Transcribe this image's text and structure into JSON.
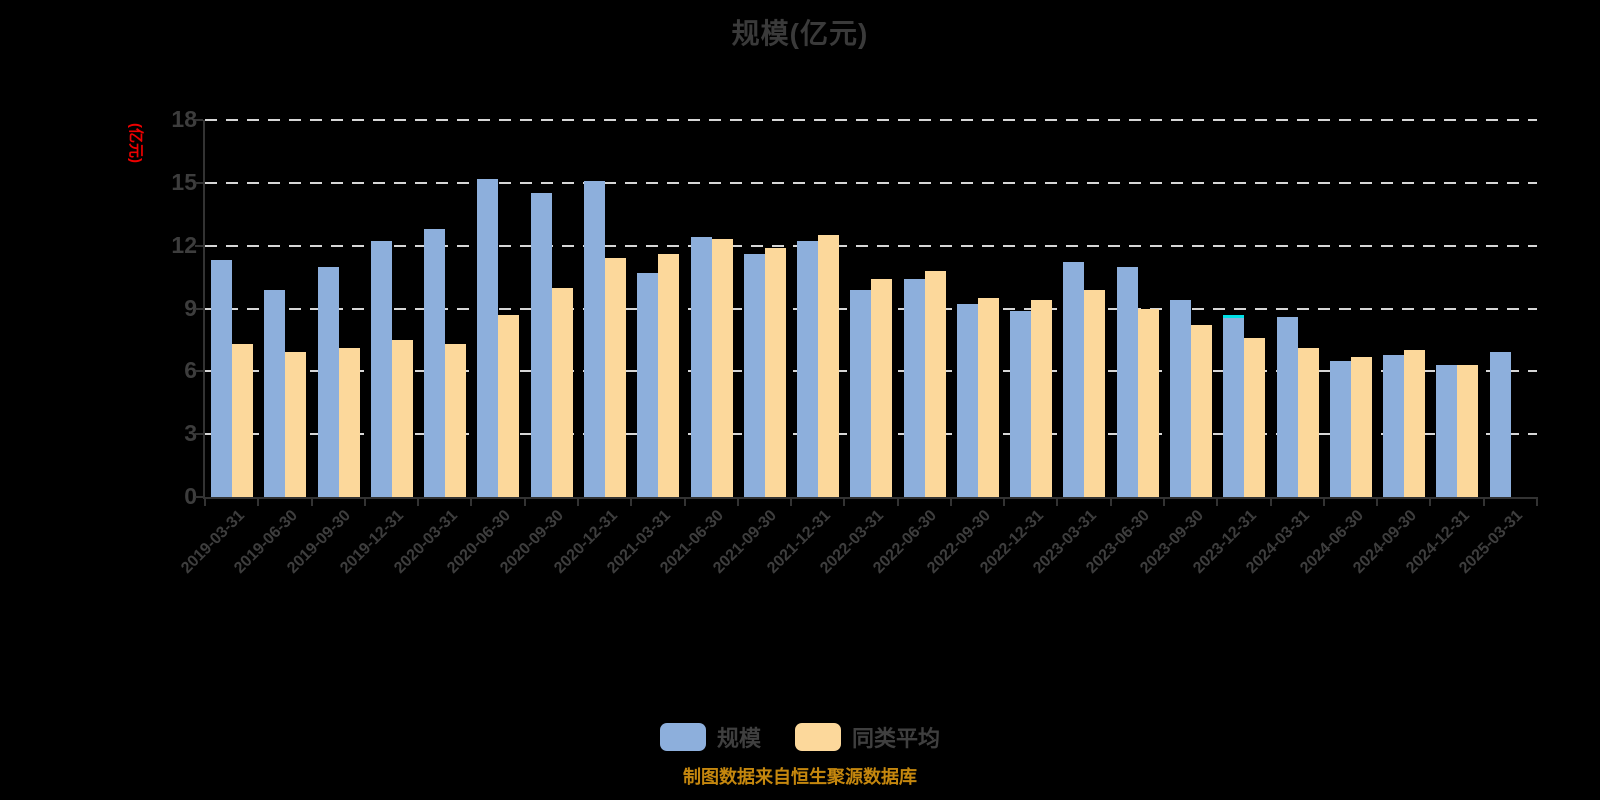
{
  "title": "规模(亿元)",
  "y_axis": {
    "unit_label": "(亿元)",
    "unit_color": "#ee0000",
    "ticks": [
      0,
      3,
      6,
      9,
      12,
      15,
      18
    ]
  },
  "legend": {
    "items": [
      {
        "label": "规模",
        "color": "#8dafdc"
      },
      {
        "label": "同类平均",
        "color": "#fcd89b"
      }
    ]
  },
  "footer": {
    "text": "制图数据来自恒生聚源数据库",
    "color": "#c5870e"
  },
  "chart_data": {
    "type": "bar",
    "title": "规模(亿元)",
    "ylabel": "(亿元)",
    "ylim": [
      0,
      18
    ],
    "grid": true,
    "gridline_color": "#d6d6d6",
    "axis_color": "#333333",
    "legend_position": "bottom",
    "categories": [
      "2019-03-31",
      "2019-06-30",
      "2019-09-30",
      "2019-12-31",
      "2020-03-31",
      "2020-06-30",
      "2020-09-30",
      "2020-12-31",
      "2021-03-31",
      "2021-06-30",
      "2021-09-30",
      "2021-12-31",
      "2022-03-31",
      "2022-06-30",
      "2022-09-30",
      "2022-12-31",
      "2023-03-31",
      "2023-06-30",
      "2023-09-30",
      "2023-12-31",
      "2024-03-31",
      "2024-06-30",
      "2024-09-30",
      "2024-12-31",
      "2025-03-31"
    ],
    "series": [
      {
        "name": "规模",
        "color": "#8dafdc",
        "values": [
          11.3,
          9.9,
          11.0,
          12.2,
          12.8,
          15.2,
          14.5,
          15.1,
          10.7,
          12.4,
          11.6,
          12.2,
          9.9,
          10.4,
          9.2,
          8.9,
          11.2,
          11.0,
          9.4,
          8.7,
          8.6,
          6.5,
          6.8,
          6.3,
          6.9
        ]
      },
      {
        "name": "同类平均",
        "color": "#fcd89b",
        "values": [
          7.3,
          6.9,
          7.1,
          7.5,
          7.3,
          8.7,
          10.0,
          11.4,
          11.6,
          12.3,
          11.9,
          12.5,
          10.4,
          10.8,
          9.5,
          9.4,
          9.9,
          9.0,
          8.2,
          7.6,
          7.1,
          6.7,
          7.0,
          6.3,
          null
        ]
      }
    ],
    "highlight": {
      "series": "规模",
      "category": "2023-12-31",
      "color": "#00e0e6"
    }
  }
}
